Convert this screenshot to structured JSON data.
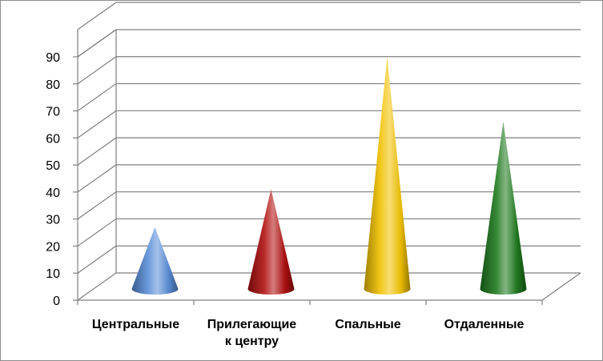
{
  "chart_data": {
    "type": "bar",
    "style": "3d-cone",
    "categories": [
      [
        "Центральные"
      ],
      [
        "Прилегающие",
        "к центру"
      ],
      [
        "Спальные"
      ],
      [
        "Отдаленные"
      ]
    ],
    "values": [
      22,
      36,
      85,
      61
    ],
    "colors": [
      "#5b8fd8",
      "#b01010",
      "#f2c200",
      "#1f7a1f"
    ],
    "ylim": [
      0,
      90
    ],
    "yticks": [
      "0",
      "10",
      "20",
      "30",
      "40",
      "50",
      "60",
      "70",
      "80",
      "90"
    ],
    "grid": true,
    "legend": "none"
  }
}
